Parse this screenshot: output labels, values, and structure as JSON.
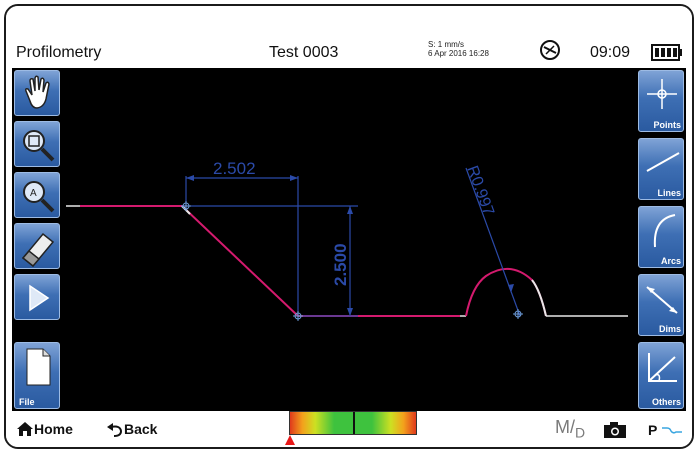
{
  "header": {
    "app_title": "Profilometry",
    "test_name": "Test 0003",
    "speed": "S: 1 mm/s",
    "datetime": "6 Apr 2016  16:28",
    "clock": "09:09",
    "sync_icon": "sync-rotate-icon",
    "battery_icon": "battery-full-icon"
  },
  "left_tools": [
    {
      "icon": "hand-pan-icon",
      "label": ""
    },
    {
      "icon": "zoom-window-icon",
      "label": ""
    },
    {
      "icon": "zoom-all-icon",
      "label": ""
    },
    {
      "icon": "eraser-icon",
      "label": ""
    },
    {
      "icon": "play-icon",
      "label": ""
    },
    {
      "icon": "file-icon",
      "label": "File"
    }
  ],
  "right_tools": [
    {
      "icon": "crosshair-icon",
      "label": "Points"
    },
    {
      "icon": "line-icon",
      "label": "Lines"
    },
    {
      "icon": "arc-icon",
      "label": "Arcs"
    },
    {
      "icon": "dimension-icon",
      "label": "Dims"
    },
    {
      "icon": "others-icon",
      "label": "Others"
    }
  ],
  "measurements": {
    "horizontal_dim": "2.502",
    "vertical_dim": "2.500",
    "radius_dim": "R0.997"
  },
  "colors": {
    "profile_white": "#e8e8e8",
    "profile_selected": "#d41a6e",
    "dimension": "#2b4aa8",
    "button_blue": "#3e6fb4"
  },
  "footer": {
    "home_label": "Home",
    "back_label": "Back",
    "md_main": "M/",
    "md_sub": "D",
    "plot_mode": "P"
  }
}
